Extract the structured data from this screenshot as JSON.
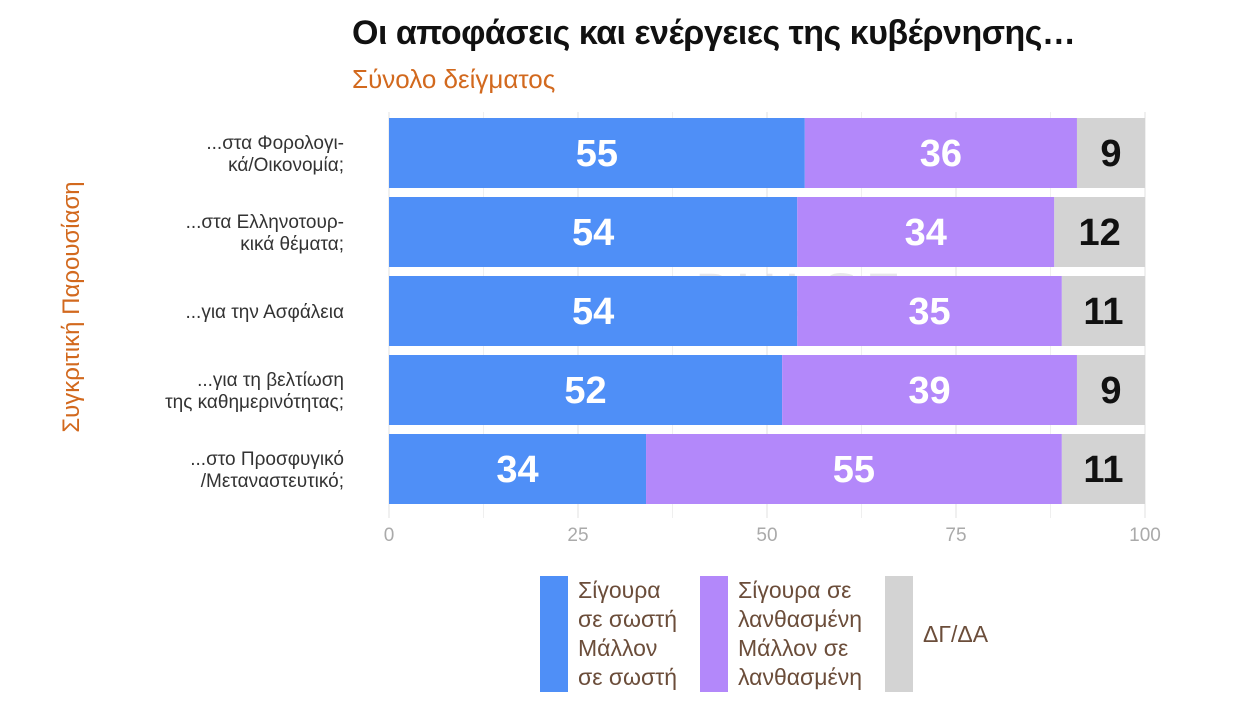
{
  "title": "Οι αποφάσεις και ενέργειες της κυβέρνησης…",
  "subtitle": "Σύνολο δείγματος",
  "side_label": "Συγκριτική   Παρουσίαση",
  "watermark": {
    "brand": "PULSE",
    "tagline": "RESEARCH & CONSULTING"
  },
  "colors": {
    "correct": "#4f8ff7",
    "wrong": "#b388fa",
    "dk": "#d3d3d3",
    "tick": "#aaaaaa",
    "label": "#333333"
  },
  "legend": [
    {
      "label": "Σίγουρα\nσε σωστή\nΜάλλον\nσε σωστή",
      "color": "#4f8ff7"
    },
    {
      "label": "Σίγουρα σε\nλανθασμένη\nΜάλλον σε\nλανθασμένη",
      "color": "#b388fa"
    },
    {
      "label": "ΔΓ/ΔΑ",
      "color": "#d3d3d3"
    }
  ],
  "chart_data": {
    "type": "bar",
    "orientation": "horizontal",
    "stacked": true,
    "categories": [
      [
        "...στα Φορολογι-",
        "κά/Οικονομία;"
      ],
      [
        "...στα Ελληνοτουρ-",
        "κικά θέματα;"
      ],
      [
        "...για την Ασφάλεια"
      ],
      [
        "...για τη βελτίωση",
        "της καθημερινότητας;"
      ],
      [
        "...στο Προσφυγικό",
        "/Μεταναστευτικό;"
      ]
    ],
    "series": [
      {
        "name": "Σίγουρα σε σωστή Μάλλον σε σωστή",
        "values": [
          55,
          54,
          54,
          52,
          34
        ]
      },
      {
        "name": "Σίγουρα σε λανθασμένη Μάλλον σε λανθασμένη",
        "values": [
          36,
          34,
          35,
          39,
          55
        ]
      },
      {
        "name": "ΔΓ/ΔΑ",
        "values": [
          9,
          12,
          11,
          9,
          11
        ]
      }
    ],
    "xlim": [
      0,
      100
    ],
    "xticks": [
      0,
      25,
      50,
      75,
      100
    ],
    "grid": true,
    "legend_position": "bottom"
  }
}
